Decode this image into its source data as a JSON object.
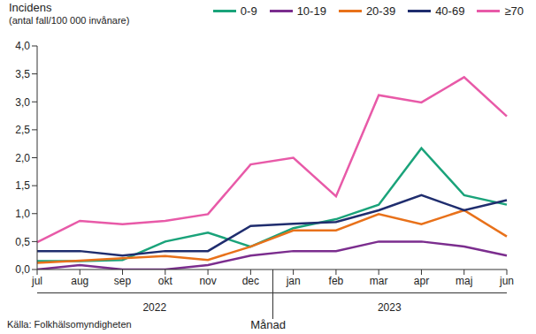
{
  "chart_data": {
    "type": "line",
    "title": "Incidens",
    "subtitle": "(antal fall/100 000 invånare)",
    "x_label": "Månad",
    "source": "Källa: Folkhälsomyndigheten",
    "categories": [
      "jul",
      "aug",
      "sep",
      "okt",
      "nov",
      "dec",
      "jan",
      "feb",
      "mar",
      "apr",
      "maj",
      "jun"
    ],
    "year_groups": [
      {
        "label": "2022",
        "from": "jul",
        "to": "dec"
      },
      {
        "label": "2023",
        "from": "jan",
        "to": "jun"
      }
    ],
    "ylim": [
      0,
      4
    ],
    "yticks": [
      {
        "value": 0,
        "label": "0,0"
      },
      {
        "value": 0.5,
        "label": "0,5"
      },
      {
        "value": 1,
        "label": "1,0"
      },
      {
        "value": 1.5,
        "label": "1,5"
      },
      {
        "value": 2,
        "label": "2,0"
      },
      {
        "value": 2.5,
        "label": "2,5"
      },
      {
        "value": 3,
        "label": "3,0"
      },
      {
        "value": 3.5,
        "label": "3,5"
      },
      {
        "value": 4,
        "label": "4,0"
      }
    ],
    "grid": false,
    "legend": "top",
    "series": [
      {
        "name": "0-9",
        "color": "#1aa37a",
        "values": [
          0.15,
          0.15,
          0.17,
          0.5,
          0.66,
          0.41,
          0.74,
          0.9,
          1.16,
          2.17,
          1.33,
          1.16
        ]
      },
      {
        "name": "10-19",
        "color": "#7b2d8e",
        "values": [
          0,
          0.08,
          0,
          0,
          0.08,
          0.25,
          0.33,
          0.33,
          0.5,
          0.5,
          0.41,
          0.25
        ]
      },
      {
        "name": "20-39",
        "color": "#e8711a",
        "values": [
          0.12,
          0.16,
          0.2,
          0.24,
          0.17,
          0.41,
          0.7,
          0.7,
          0.99,
          0.81,
          1.06,
          0.59
        ]
      },
      {
        "name": "40-69",
        "color": "#1f2d6e",
        "values": [
          0.33,
          0.33,
          0.25,
          0.33,
          0.33,
          0.78,
          0.82,
          0.85,
          1.06,
          1.33,
          1.06,
          1.24
        ]
      },
      {
        "name": "≥70",
        "color": "#e85aa8",
        "values": [
          0.49,
          0.87,
          0.81,
          0.87,
          0.99,
          1.88,
          2.0,
          1.31,
          3.12,
          2.99,
          3.44,
          2.74
        ]
      }
    ]
  }
}
